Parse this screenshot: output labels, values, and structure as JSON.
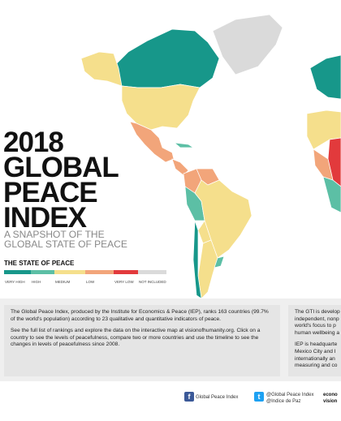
{
  "title_lines": [
    "2018",
    "GLOBAL",
    "PEACE",
    "INDEX"
  ],
  "subtitle_lines": [
    "A SNAPSHOT OF THE",
    "GLOBAL STATE OF PEACE"
  ],
  "legend": {
    "heading": "THE STATE OF PEACE",
    "items": [
      {
        "label": "VERY HIGH",
        "color": "#17978a"
      },
      {
        "label": "HIGH",
        "color": "#5cbfa5"
      },
      {
        "label": "MEDIUM",
        "color": "#f5df8c"
      },
      {
        "label": "LOW",
        "color": "#f2a57a"
      },
      {
        "label": "VERY LOW",
        "color": "#e23a3c"
      },
      {
        "label": "NOT INCLUDED",
        "color": "#dadada"
      }
    ]
  },
  "description": {
    "paragraphs": [
      "The Global Peace Index, produced by the Institute for Economics & Peace (IEP), ranks 163 countries (99.7% of the world's population) according to 23 qualitative and quantitative indicators of peace.",
      "See the full list of rankings and explore the data on the interactive map at visionofhumanity.org. Click on a country to see the levels of peacefulness, compare two or more countries and use the timeline to see the changes in levels of peacefulness since 2008."
    ]
  },
  "sidebar": {
    "paragraphs": [
      [
        "The GTI is develop",
        "independent, nonp",
        "world's focus to p",
        "human wellbeing a"
      ],
      [
        "IEP is headquarte",
        "Mexico City and I",
        "internationally an",
        "measuring and co"
      ]
    ]
  },
  "footer": {
    "facebook": "Global Peace Index",
    "twitter": [
      "@Global Peace Index",
      "@Indice de Paz"
    ],
    "partner": [
      "econo",
      "vision"
    ]
  }
}
